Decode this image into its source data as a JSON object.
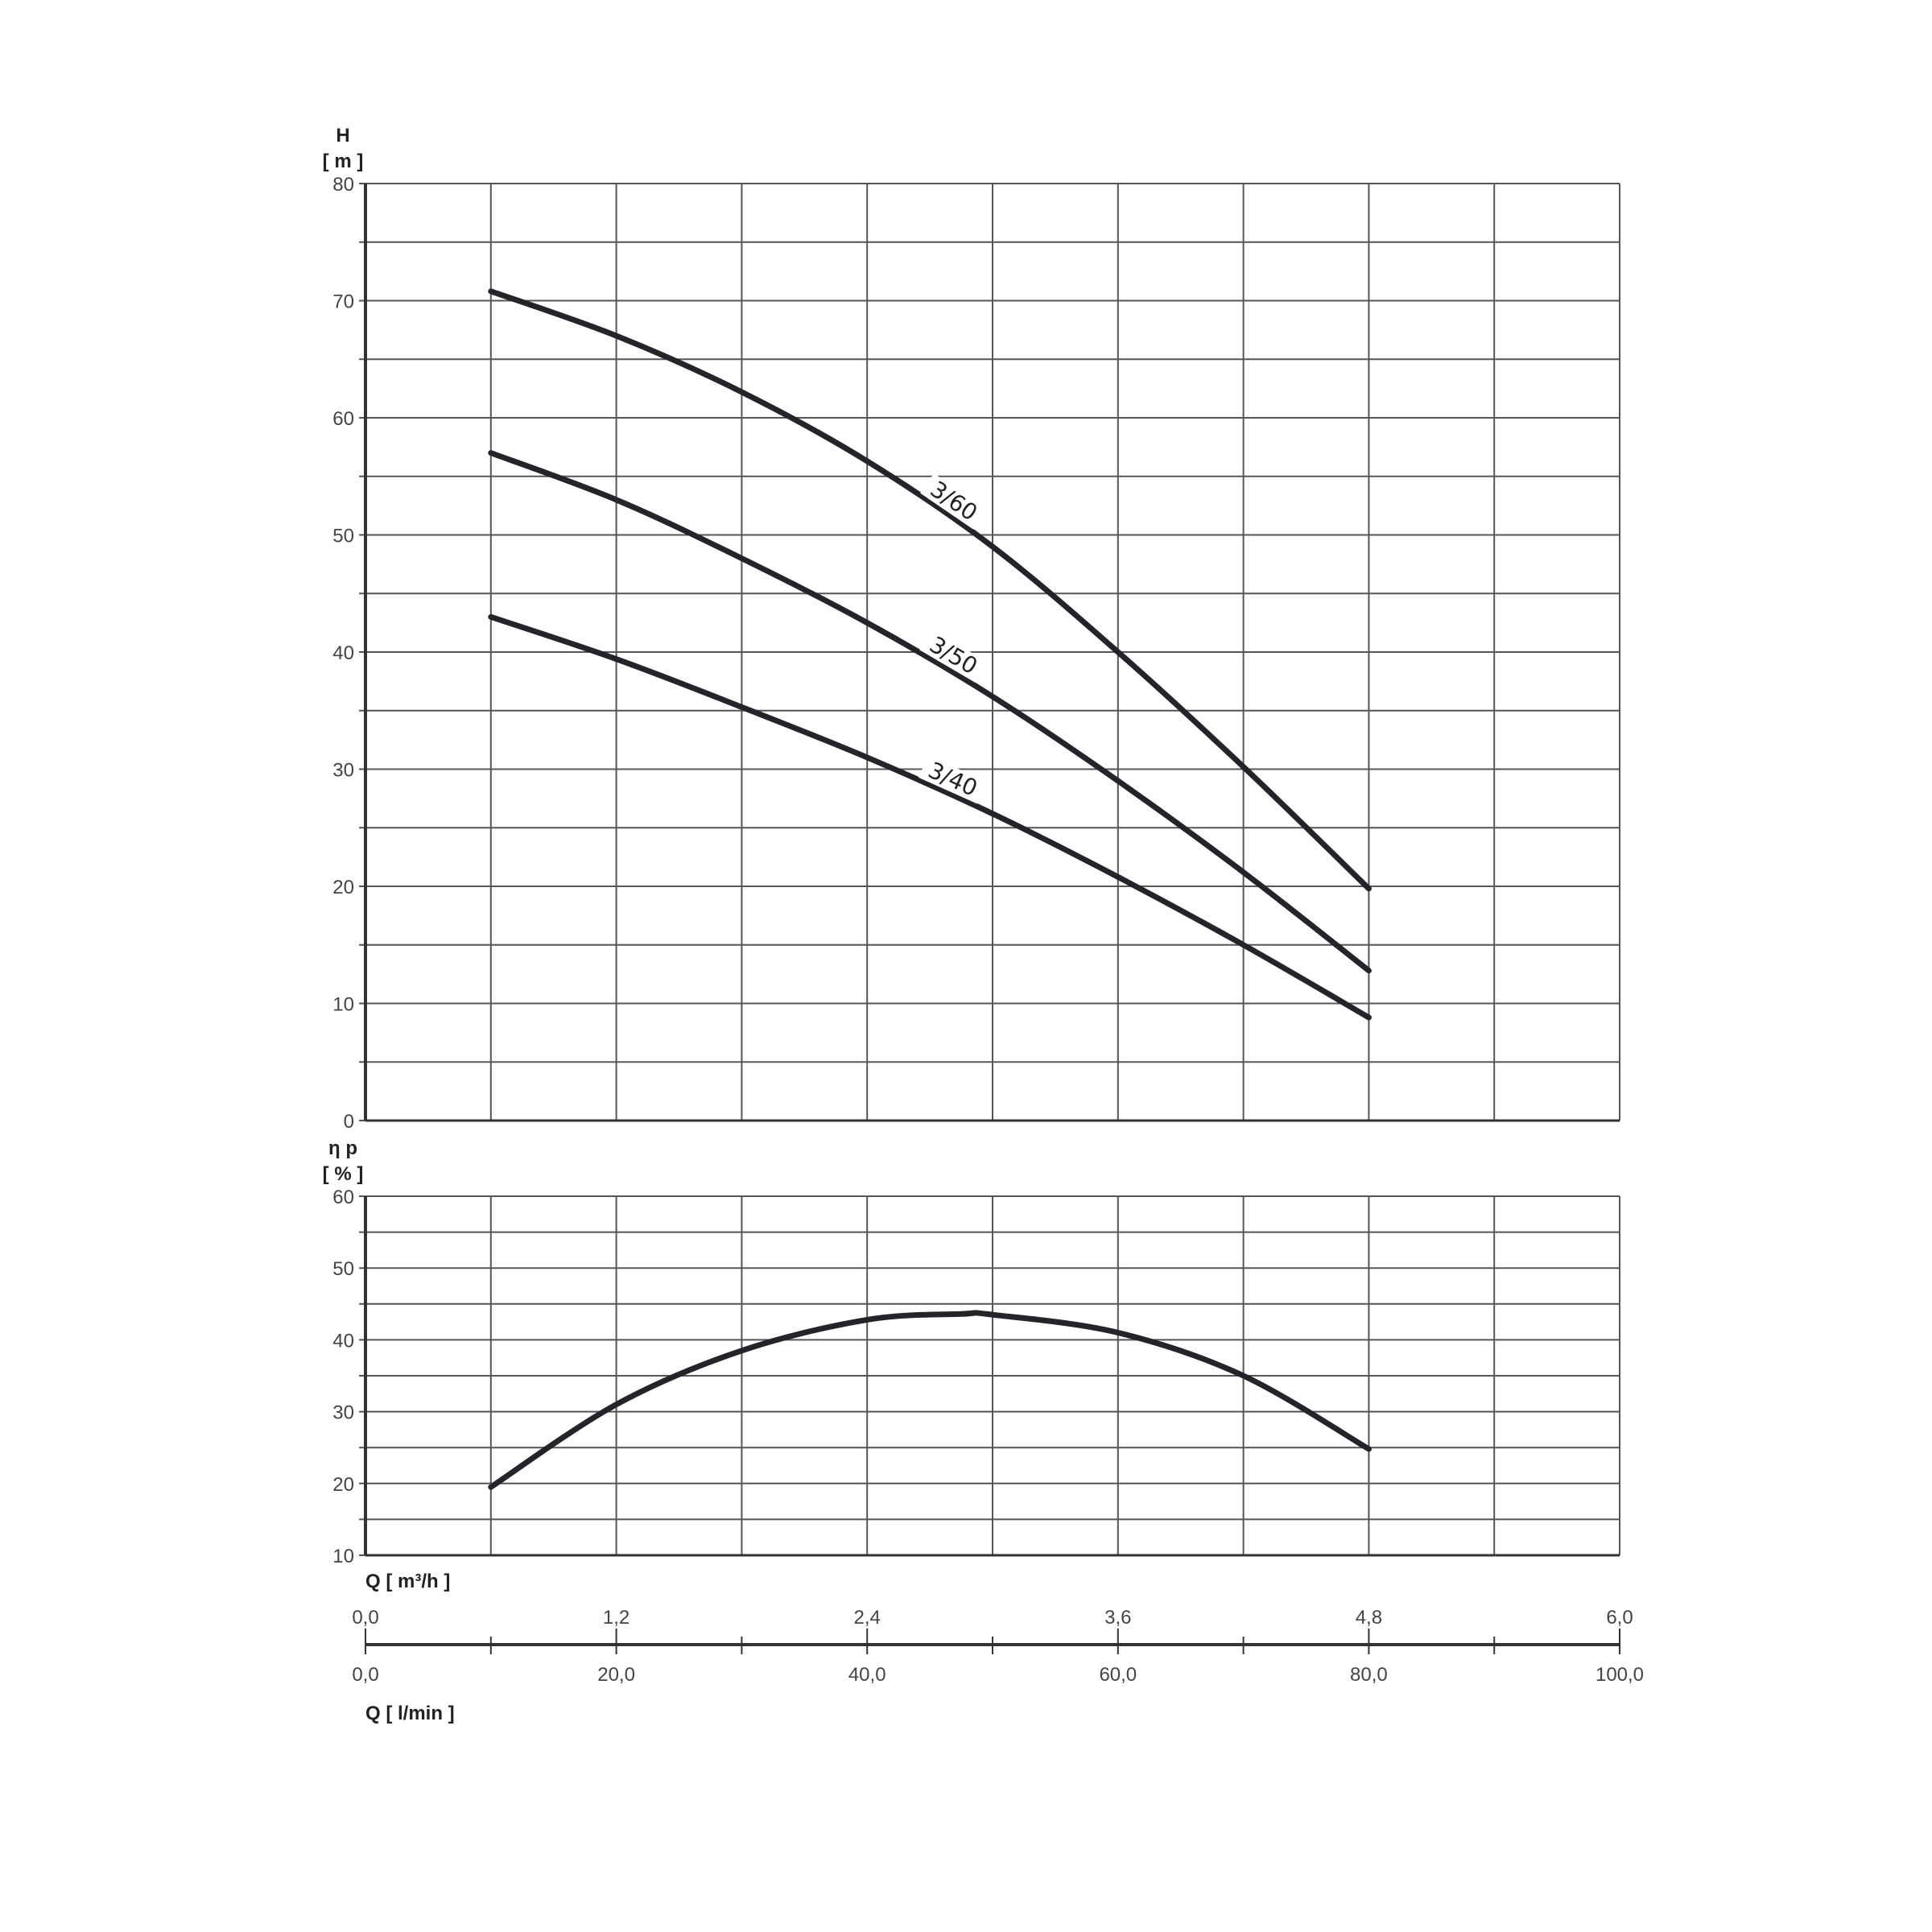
{
  "chart_data": [
    {
      "type": "line",
      "ylabel": "H",
      "yunit": "[ m ]",
      "ylim": [
        0,
        80
      ],
      "yticks": [
        0,
        10,
        20,
        30,
        40,
        50,
        60,
        70,
        80
      ],
      "xlim": [
        0,
        6.0
      ],
      "grid": true,
      "series": [
        {
          "name": "3/60",
          "x": [
            0.6,
            1.2,
            1.8,
            2.4,
            3.0,
            3.6,
            4.2,
            4.8
          ],
          "y": [
            70.8,
            67,
            62.2,
            56.3,
            49,
            40,
            30.2,
            19.8
          ]
        },
        {
          "name": "3/50",
          "x": [
            0.6,
            1.2,
            1.8,
            2.4,
            3.0,
            3.6,
            4.2,
            4.8
          ],
          "y": [
            57,
            53,
            48,
            42.5,
            36.2,
            29,
            21.2,
            12.8
          ]
        },
        {
          "name": "3/40",
          "x": [
            0.6,
            1.2,
            1.8,
            2.4,
            3.0,
            3.6,
            4.2,
            4.8
          ],
          "y": [
            43,
            39.4,
            35.3,
            31,
            26.2,
            20.8,
            15,
            8.8
          ]
        }
      ]
    },
    {
      "type": "line",
      "ylabel": "η p",
      "yunit": "[ % ]",
      "ylim": [
        10,
        60
      ],
      "yticks": [
        10,
        20,
        30,
        40,
        50,
        60
      ],
      "xlim": [
        0,
        6.0
      ],
      "grid": true,
      "series": [
        {
          "x": [
            0.6,
            1.2,
            1.8,
            2.4,
            2.85,
            3.0,
            3.6,
            4.2,
            4.8
          ],
          "y": [
            19.5,
            31,
            38.5,
            42.8,
            43.6,
            43.5,
            41,
            35,
            24.8
          ]
        }
      ]
    }
  ],
  "x_axes": {
    "m3h": {
      "label": "Q [ m³/h ]",
      "ticks": [
        "0,0",
        "1,2",
        "2,4",
        "3,6",
        "4,8",
        "6,0"
      ]
    },
    "lmin": {
      "label": "Q [ l/min ]",
      "ticks": [
        "0,0",
        "20,0",
        "40,0",
        "60,0",
        "80,0",
        "100,0"
      ]
    }
  },
  "colors": {
    "curve": "#26232b",
    "grid": "#555555",
    "text": "#444444"
  }
}
